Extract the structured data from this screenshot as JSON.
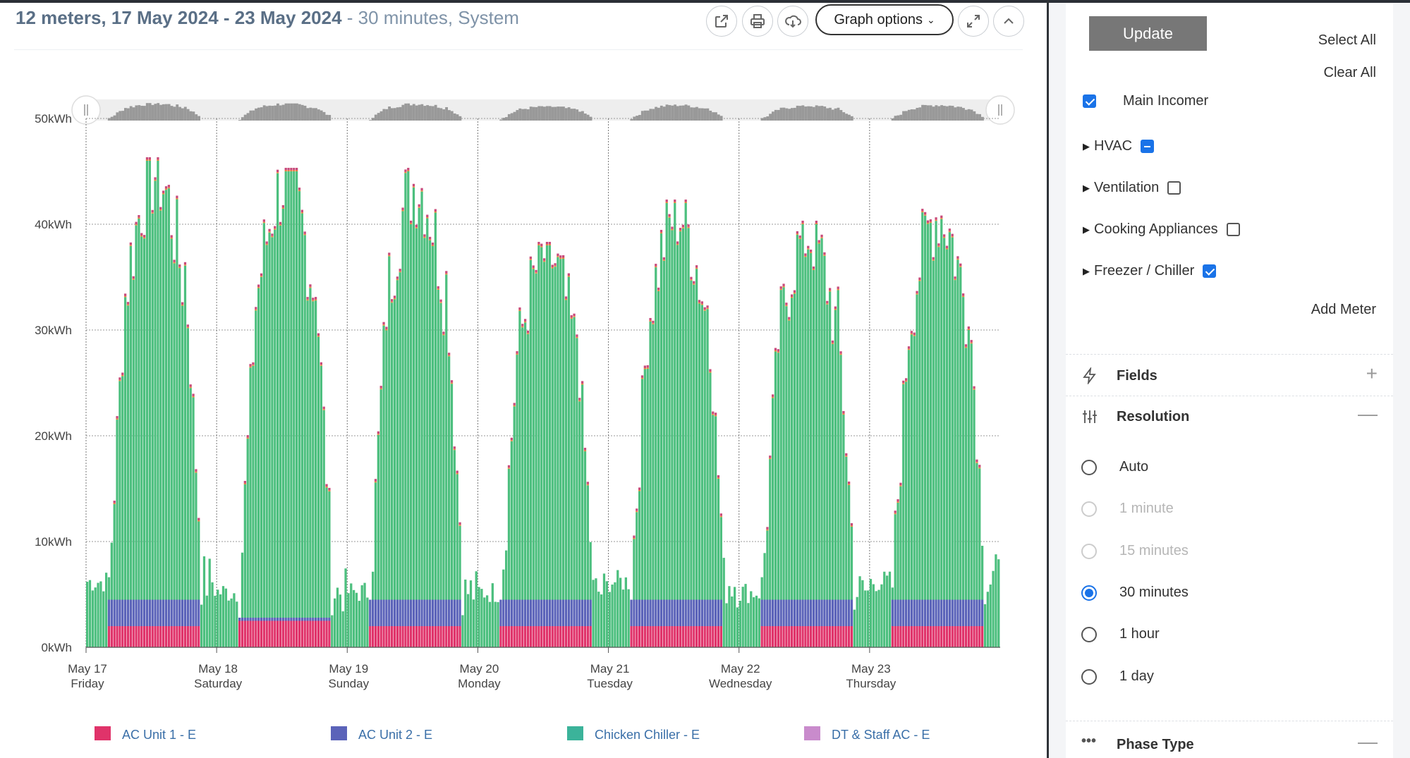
{
  "header": {
    "title_main": "12 meters, 17 May 2024 - 23 May 2024",
    "title_rest": " - 30 minutes, System",
    "graph_options_label": "Graph options",
    "icons": [
      "external-link-icon",
      "print-icon",
      "cloud-download-icon",
      "expand-icon",
      "chevron-up-icon"
    ]
  },
  "colors": {
    "green": "#4cbf7e",
    "pink": "#e0336a",
    "blue": "#5b63b9",
    "orange": "#f08c3a",
    "teal": "#3bb39a",
    "plum": "#c98bcc",
    "accent": "#1a73e8"
  },
  "legend": [
    {
      "label": "AC Unit 1 - E",
      "color": "#e0336a"
    },
    {
      "label": "AC Unit 2 - E",
      "color": "#5b63b9"
    },
    {
      "label": "Chicken Chiller - E",
      "color": "#3bb39a"
    },
    {
      "label": "DT & Staff AC - E",
      "color": "#c98bcc"
    }
  ],
  "chart_data": {
    "type": "bar",
    "stacked": true,
    "interval": "30 minutes",
    "ylim": [
      0,
      50
    ],
    "y_unit": "kWh",
    "y_ticks": [
      "0kWh",
      "10kWh",
      "20kWh",
      "30kWh",
      "40kWh",
      "50kWh"
    ],
    "x_ticks": [
      {
        "date": "May 17",
        "day": "Friday"
      },
      {
        "date": "May 18",
        "day": "Saturday"
      },
      {
        "date": "May 19",
        "day": "Sunday"
      },
      {
        "date": "May 20",
        "day": "Monday"
      },
      {
        "date": "May 21",
        "day": "Tuesday"
      },
      {
        "date": "May 22",
        "day": "Wednesday"
      },
      {
        "date": "May 23",
        "day": "Thursday"
      }
    ],
    "daily_peak_kwh": [
      46,
      45,
      45,
      38,
      42,
      40,
      42
    ],
    "daily_night_base_kwh": [
      6,
      5,
      5,
      5,
      6,
      5,
      6
    ],
    "daily_ac_unit_1_kwh": [
      2,
      2.5,
      2,
      2,
      2,
      2,
      2
    ],
    "daily_ac_unit_2_kwh": [
      2.5,
      0.3,
      2.5,
      2.5,
      2.5,
      2.5,
      2.5
    ],
    "grid": true
  },
  "sidebar": {
    "update_label": "Update",
    "select_all": "Select All",
    "clear_all": "Clear All",
    "meters": [
      {
        "label": "Main Incomer",
        "expandable": false,
        "state": "checked"
      },
      {
        "label": "HVAC",
        "expandable": true,
        "state": "partial"
      },
      {
        "label": "Ventilation",
        "expandable": true,
        "state": "unchecked"
      },
      {
        "label": "Cooking Appliances",
        "expandable": true,
        "state": "unchecked"
      },
      {
        "label": "Freezer / Chiller",
        "expandable": true,
        "state": "checked"
      }
    ],
    "add_meter": "Add Meter",
    "fields_title": "Fields",
    "resolution_title": "Resolution",
    "resolution_options": [
      {
        "label": "Auto",
        "state": "enabled"
      },
      {
        "label": "1 minute",
        "state": "disabled"
      },
      {
        "label": "15 minutes",
        "state": "disabled"
      },
      {
        "label": "30 minutes",
        "state": "selected"
      },
      {
        "label": "1 hour",
        "state": "enabled"
      },
      {
        "label": "1 day",
        "state": "enabled"
      }
    ],
    "phase_type_title": "Phase Type"
  }
}
